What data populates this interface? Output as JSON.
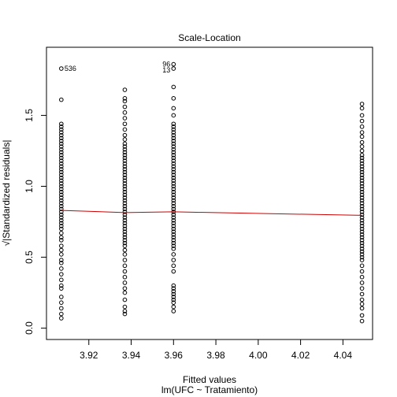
{
  "chart_data": {
    "type": "scatter",
    "title": "Scale-Location",
    "xlabel": "Fitted values",
    "xlabel2": "lm(UFC ~ Tratamiento)",
    "ylabel": "√|Standardized residuals|",
    "xlim": [
      3.9,
      4.054
    ],
    "ylim": [
      -0.08,
      1.98
    ],
    "x_ticks": [
      3.92,
      3.94,
      3.96,
      3.98,
      4.0,
      4.02,
      4.04
    ],
    "x_tick_labels": [
      "3.92",
      "3.94",
      "3.96",
      "3.98",
      "4.00",
      "4.02",
      "4.04"
    ],
    "y_ticks": [
      0.0,
      0.5,
      1.0,
      1.5
    ],
    "y_tick_labels": [
      "0.0",
      "0.5",
      "1.0",
      "1.5"
    ],
    "groups": [
      {
        "fitted": 3.907,
        "residuals": [
          0.07,
          0.1,
          0.14,
          0.18,
          0.22,
          0.28,
          0.3,
          0.34,
          0.38,
          0.42,
          0.46,
          0.48,
          0.52,
          0.55,
          0.58,
          0.62,
          0.64,
          0.67,
          0.7,
          0.72,
          0.74,
          0.76,
          0.78,
          0.8,
          0.82,
          0.84,
          0.86,
          0.88,
          0.9,
          0.92,
          0.94,
          0.96,
          0.98,
          1.0,
          1.02,
          1.04,
          1.06,
          1.08,
          1.1,
          1.12,
          1.14,
          1.16,
          1.18,
          1.2,
          1.22,
          1.24,
          1.26,
          1.28,
          1.3,
          1.32,
          1.34,
          1.36,
          1.38,
          1.4,
          1.42,
          1.44,
          1.61,
          1.83
        ]
      },
      {
        "fitted": 3.937,
        "residuals": [
          0.1,
          0.12,
          0.15,
          0.2,
          0.25,
          0.28,
          0.32,
          0.36,
          0.4,
          0.44,
          0.48,
          0.52,
          0.55,
          0.58,
          0.6,
          0.62,
          0.64,
          0.66,
          0.68,
          0.7,
          0.72,
          0.74,
          0.76,
          0.78,
          0.8,
          0.82,
          0.84,
          0.86,
          0.88,
          0.9,
          0.92,
          0.94,
          0.96,
          0.98,
          1.0,
          1.02,
          1.04,
          1.06,
          1.08,
          1.1,
          1.12,
          1.14,
          1.16,
          1.18,
          1.2,
          1.22,
          1.24,
          1.26,
          1.28,
          1.3,
          1.33,
          1.36,
          1.4,
          1.44,
          1.48,
          1.52,
          1.56,
          1.6,
          1.62,
          1.68
        ]
      },
      {
        "fitted": 3.96,
        "residuals": [
          0.12,
          0.15,
          0.18,
          0.2,
          0.22,
          0.24,
          0.26,
          0.28,
          0.3,
          0.4,
          0.44,
          0.48,
          0.52,
          0.56,
          0.58,
          0.6,
          0.62,
          0.64,
          0.66,
          0.68,
          0.7,
          0.72,
          0.74,
          0.76,
          0.78,
          0.8,
          0.82,
          0.84,
          0.86,
          0.88,
          0.9,
          0.92,
          0.94,
          0.96,
          0.98,
          1.0,
          1.02,
          1.04,
          1.06,
          1.08,
          1.1,
          1.12,
          1.14,
          1.16,
          1.18,
          1.2,
          1.22,
          1.24,
          1.26,
          1.28,
          1.3,
          1.32,
          1.34,
          1.36,
          1.38,
          1.4,
          1.42,
          1.44,
          1.5,
          1.55,
          1.62,
          1.7,
          1.83,
          1.86
        ]
      },
      {
        "fitted": 4.049,
        "residuals": [
          0.05,
          0.09,
          0.14,
          0.17,
          0.2,
          0.24,
          0.28,
          0.32,
          0.36,
          0.4,
          0.44,
          0.48,
          0.5,
          0.52,
          0.54,
          0.56,
          0.58,
          0.6,
          0.62,
          0.64,
          0.66,
          0.68,
          0.7,
          0.72,
          0.74,
          0.76,
          0.78,
          0.8,
          0.82,
          0.84,
          0.86,
          0.88,
          0.9,
          0.92,
          0.94,
          0.96,
          0.98,
          1.0,
          1.02,
          1.04,
          1.06,
          1.08,
          1.1,
          1.12,
          1.14,
          1.16,
          1.18,
          1.2,
          1.22,
          1.25,
          1.28,
          1.31,
          1.35,
          1.38,
          1.42,
          1.46,
          1.5,
          1.55,
          1.58
        ]
      }
    ],
    "smooth_line": {
      "color": "#cc0000",
      "x": [
        3.907,
        3.937,
        3.96,
        4.049
      ],
      "y": [
        0.83,
        0.815,
        0.82,
        0.795
      ]
    },
    "annotations": [
      {
        "label": "536",
        "x": 3.907,
        "y": 1.83,
        "align": "left"
      },
      {
        "label": "96",
        "x": 3.96,
        "y": 1.86,
        "align": "right"
      },
      {
        "label": "13",
        "x": 3.96,
        "y": 1.82,
        "align": "right"
      }
    ],
    "point_color": "#000000",
    "grid": false,
    "legend": "none"
  }
}
